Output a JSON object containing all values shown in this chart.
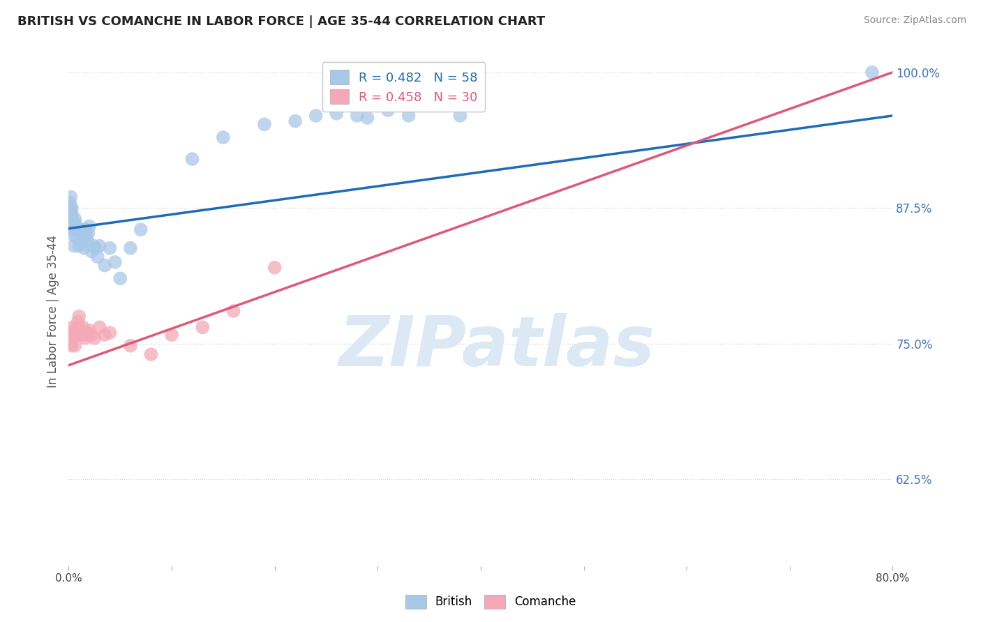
{
  "title": "BRITISH VS COMANCHE IN LABOR FORCE | AGE 35-44 CORRELATION CHART",
  "source": "Source: ZipAtlas.com",
  "ylabel": "In Labor Force | Age 35-44",
  "xlim": [
    0.0,
    0.8
  ],
  "ylim": [
    0.545,
    1.015
  ],
  "xticks": [
    0.0,
    0.1,
    0.2,
    0.3,
    0.4,
    0.5,
    0.6,
    0.7,
    0.8
  ],
  "xticklabels": [
    "0.0%",
    "",
    "",
    "",
    "",
    "",
    "",
    "",
    "80.0%"
  ],
  "yticks": [
    0.625,
    0.75,
    0.875,
    1.0
  ],
  "yticklabels": [
    "62.5%",
    "75.0%",
    "87.5%",
    "100.0%"
  ],
  "british_R": 0.482,
  "british_N": 58,
  "comanche_R": 0.458,
  "comanche_N": 30,
  "british_color": "#A8C8E8",
  "comanche_color": "#F4A8B8",
  "british_line_color": "#1E6BB8",
  "comanche_line_color": "#E05878",
  "watermark": "ZIPatlas",
  "watermark_color": "#DCE8F4",
  "british_x": [
    0.001,
    0.001,
    0.001,
    0.002,
    0.002,
    0.002,
    0.002,
    0.002,
    0.003,
    0.003,
    0.003,
    0.003,
    0.004,
    0.004,
    0.004,
    0.005,
    0.005,
    0.005,
    0.006,
    0.006,
    0.007,
    0.007,
    0.008,
    0.009,
    0.01,
    0.011,
    0.012,
    0.013,
    0.014,
    0.015,
    0.016,
    0.017,
    0.018,
    0.019,
    0.02,
    0.022,
    0.024,
    0.026,
    0.028,
    0.03,
    0.035,
    0.04,
    0.045,
    0.05,
    0.06,
    0.07,
    0.12,
    0.15,
    0.19,
    0.22,
    0.24,
    0.26,
    0.28,
    0.29,
    0.31,
    0.33,
    0.38,
    0.78
  ],
  "british_y": [
    0.88,
    0.875,
    0.87,
    0.885,
    0.876,
    0.86,
    0.855,
    0.872,
    0.87,
    0.865,
    0.858,
    0.875,
    0.862,
    0.86,
    0.855,
    0.858,
    0.84,
    0.85,
    0.855,
    0.865,
    0.86,
    0.855,
    0.848,
    0.855,
    0.84,
    0.855,
    0.842,
    0.848,
    0.852,
    0.838,
    0.855,
    0.85,
    0.845,
    0.852,
    0.858,
    0.835,
    0.84,
    0.838,
    0.83,
    0.84,
    0.822,
    0.838,
    0.825,
    0.81,
    0.838,
    0.855,
    0.92,
    0.94,
    0.952,
    0.955,
    0.96,
    0.962,
    0.96,
    0.958,
    0.965,
    0.96,
    0.96,
    1.0
  ],
  "comanche_x": [
    0.002,
    0.002,
    0.003,
    0.004,
    0.005,
    0.006,
    0.007,
    0.008,
    0.009,
    0.01,
    0.011,
    0.012,
    0.013,
    0.014,
    0.015,
    0.016,
    0.017,
    0.018,
    0.02,
    0.022,
    0.025,
    0.03,
    0.035,
    0.04,
    0.06,
    0.08,
    0.1,
    0.13,
    0.16,
    0.2
  ],
  "comanche_y": [
    0.76,
    0.75,
    0.748,
    0.765,
    0.76,
    0.748,
    0.758,
    0.765,
    0.77,
    0.775,
    0.76,
    0.758,
    0.762,
    0.765,
    0.76,
    0.755,
    0.758,
    0.76,
    0.762,
    0.758,
    0.755,
    0.765,
    0.758,
    0.76,
    0.748,
    0.74,
    0.758,
    0.765,
    0.78,
    0.82
  ]
}
